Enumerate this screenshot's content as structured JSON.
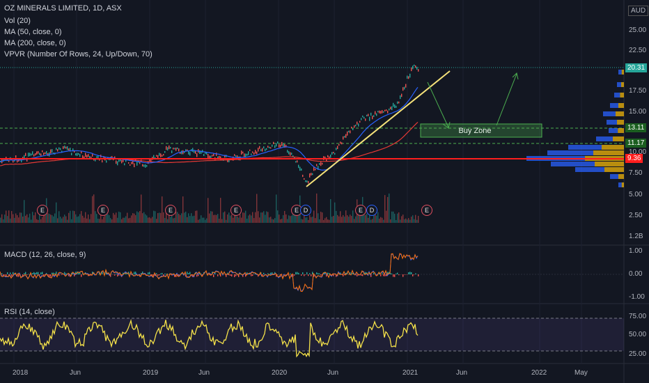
{
  "symbol_title": "OZ MINERALS LIMITED, 1D, ASX",
  "currency": "AUD",
  "indicators": [
    "Vol (20)",
    "MA (50, close, 0)",
    "MA (200, close, 0)",
    "VPVR (Number Of Rows, 24, Up/Down, 70)"
  ],
  "macd_label": "MACD (12, 26, close, 9)",
  "rsi_label": "RSI (14, close)",
  "annotation": "Buy Zone",
  "price_axis": [
    "25.00",
    "22.50",
    "17.50",
    "15.00",
    "10.00",
    "7.50",
    "5.00",
    "2.50",
    "1.2B"
  ],
  "price_tags": {
    "last": "20.31",
    "upper": "13.11",
    "lower": "11.17",
    "support": "9.36"
  },
  "macd_axis": [
    "1.00",
    "0.00",
    "-1.00"
  ],
  "rsi_axis": [
    "75.00",
    "50.00",
    "25.00"
  ],
  "time_axis": [
    "2018",
    "Jun",
    "2019",
    "Jun",
    "2020",
    "Jun",
    "2021",
    "Jun",
    "2022",
    "May"
  ],
  "earnings_badge": "E",
  "earnings_alt": "D",
  "colors": {
    "up": "#26a69a",
    "down": "#ef5350",
    "ma50": "#2962ff",
    "ma200": "#e53935",
    "trend": "#f5e27a",
    "zone": "#4caf50",
    "rsi": "#f5e24a",
    "support": "#ff1e1e"
  }
}
